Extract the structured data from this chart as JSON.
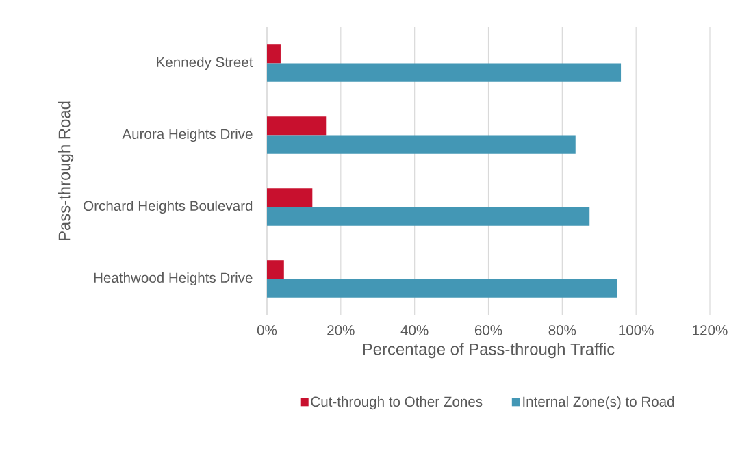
{
  "chart_data": {
    "type": "bar",
    "orientation": "horizontal",
    "xlabel": "Percentage of Pass-through Traffic",
    "ylabel": "Pass-through Road",
    "categories": [
      "Kennedy Street",
      "Aurora Heights Drive",
      "Orchard Heights Boulevard",
      "Heathwood Heights Drive"
    ],
    "series": [
      {
        "name": "Cut-through to Other Zones",
        "color": "#c8102e",
        "values": [
          3.7,
          16.0,
          12.3,
          4.6
        ]
      },
      {
        "name": "Internal Zone(s) to Road",
        "color": "#4397b5",
        "values": [
          95.9,
          83.6,
          87.4,
          94.9
        ]
      }
    ],
    "xlim": [
      0,
      120
    ],
    "xticks": [
      {
        "value": 0,
        "label": "0%"
      },
      {
        "value": 20,
        "label": "20%"
      },
      {
        "value": 40,
        "label": "40%"
      },
      {
        "value": 60,
        "label": "60%"
      },
      {
        "value": 80,
        "label": "80%"
      },
      {
        "value": 100,
        "label": "100%"
      },
      {
        "value": 120,
        "label": "120%"
      }
    ],
    "grid": "x",
    "legend": "bottom"
  }
}
